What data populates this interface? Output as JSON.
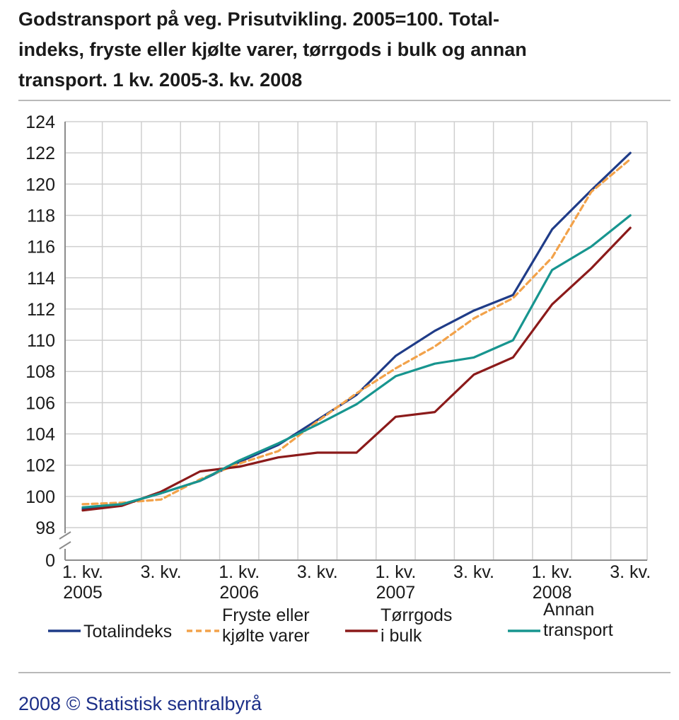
{
  "title_lines": [
    "Godstransport på veg. Prisutvikling. 2005=100. Total-",
    "indeks, fryste eller kjølte varer, tørrgods i bulk og annan",
    "transport. 1 kv. 2005-3. kv. 2008"
  ],
  "footer": "2008 © Statistisk sentralbyrå",
  "chart_data": {
    "type": "line",
    "title": "Godstransport på veg. Prisutvikling. 2005=100. Totalindeks, fryste eller kjølte varer, tørrgods i bulk og annan transport. 1 kv. 2005-3. kv. 2008",
    "xlabel": "",
    "ylabel": "",
    "categories": [
      "1. kv. 2005",
      "2. kv. 2005",
      "3. kv. 2005",
      "4. kv. 2005",
      "1. kv. 2006",
      "2. kv. 2006",
      "3. kv. 2006",
      "4. kv. 2006",
      "1. kv. 2007",
      "2. kv. 2007",
      "3. kv. 2007",
      "4. kv. 2007",
      "1. kv. 2008",
      "2. kv. 2008",
      "3. kv. 2008"
    ],
    "x_tick_labels": [
      {
        "index": 0,
        "lines": [
          "1. kv.",
          "2005"
        ]
      },
      {
        "index": 2,
        "lines": [
          "3. kv.",
          ""
        ]
      },
      {
        "index": 4,
        "lines": [
          "1. kv.",
          "2006"
        ]
      },
      {
        "index": 6,
        "lines": [
          "3. kv.",
          ""
        ]
      },
      {
        "index": 8,
        "lines": [
          "1. kv.",
          "2007"
        ]
      },
      {
        "index": 10,
        "lines": [
          "3. kv.",
          ""
        ]
      },
      {
        "index": 12,
        "lines": [
          "1. kv.",
          "2008"
        ]
      },
      {
        "index": 14,
        "lines": [
          "3. kv.",
          ""
        ]
      }
    ],
    "y_ticks": [
      124,
      122,
      120,
      118,
      116,
      114,
      112,
      110,
      108,
      106,
      104,
      102,
      100,
      98
    ],
    "y_zero_label": "0",
    "y_axis_break": true,
    "ylim": [
      98,
      124
    ],
    "grid": true,
    "legend_position": "bottom",
    "series": [
      {
        "name_lines": [
          "Totalindeks"
        ],
        "color": "#1f3c88",
        "dash": "solid",
        "values": [
          99.2,
          99.5,
          100.2,
          101.0,
          102.2,
          103.3,
          104.9,
          106.5,
          109.0,
          110.6,
          111.9,
          112.9,
          117.1,
          119.6,
          122.0
        ]
      },
      {
        "name_lines": [
          "Fryste eller",
          "kjølte varer"
        ],
        "color": "#f2a24a",
        "dash": "dashed",
        "values": [
          99.5,
          99.6,
          99.8,
          101.1,
          102.1,
          102.9,
          104.8,
          106.6,
          108.2,
          109.6,
          111.4,
          112.7,
          115.3,
          119.5,
          121.6
        ]
      },
      {
        "name_lines": [
          "Tørrgods",
          "i bulk"
        ],
        "color": "#8b1a1a",
        "dash": "solid",
        "values": [
          99.1,
          99.4,
          100.3,
          101.6,
          101.9,
          102.5,
          102.8,
          102.8,
          105.1,
          105.4,
          107.8,
          108.9,
          112.3,
          114.6,
          117.2
        ]
      },
      {
        "name_lines": [
          "Annan",
          "transport"
        ],
        "color": "#17958f",
        "dash": "solid",
        "values": [
          99.3,
          99.5,
          100.2,
          101.0,
          102.3,
          103.4,
          104.6,
          105.9,
          107.7,
          108.5,
          108.9,
          110.0,
          114.5,
          116.0,
          118.0
        ]
      }
    ]
  }
}
